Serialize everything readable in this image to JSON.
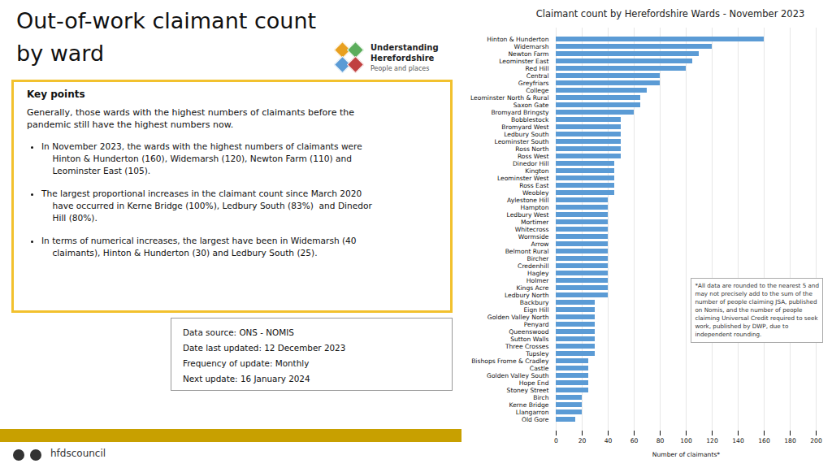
{
  "chart_data": {
    "type": "bar",
    "orientation": "horizontal",
    "title": "Claimant count by Herefordshire Wards - November 2023",
    "xlabel": "Number of claimants*",
    "categories": [
      "Hinton & Hunderton",
      "Widemarsh",
      "Newton Farm",
      "Leominster East",
      "Red Hill",
      "Central",
      "Greyfriars",
      "College",
      "Leominster North & Rural",
      "Saxon Gate",
      "Bromyard Bringsty",
      "Bobblestock",
      "Bromyard West",
      "Ledbury South",
      "Leominster South",
      "Ross North",
      "Ross West",
      "Dinedor Hill",
      "Kington",
      "Leominster West",
      "Ross East",
      "Weobley",
      "Aylestone Hill",
      "Hampton",
      "Ledbury West",
      "Mortimer",
      "Whitecross",
      "Wormside",
      "Arrow",
      "Belmont Rural",
      "Bircher",
      "Credenhill",
      "Hagley",
      "Holmer",
      "Kings Acre",
      "Ledbury North",
      "Backbury",
      "Eign Hill",
      "Golden Valley North",
      "Penyard",
      "Queenswood",
      "Sutton Walls",
      "Three Crosses",
      "Tupsley",
      "Bishops Frome & Cradley",
      "Castle",
      "Golden Valley South",
      "Hope End",
      "Stoney Street",
      "Birch",
      "Kerne Bridge",
      "Llangarron",
      "Old Gore"
    ],
    "values": [
      160,
      120,
      110,
      105,
      100,
      80,
      80,
      70,
      65,
      65,
      60,
      50,
      50,
      50,
      50,
      50,
      50,
      45,
      45,
      45,
      45,
      45,
      40,
      40,
      40,
      40,
      40,
      40,
      40,
      40,
      40,
      40,
      40,
      40,
      40,
      40,
      30,
      30,
      30,
      30,
      30,
      30,
      30,
      30,
      25,
      25,
      25,
      25,
      25,
      20,
      20,
      20,
      15
    ],
    "color": "#5B9BD5",
    "xlim": [
      0,
      200
    ],
    "xticks": [
      0,
      20,
      40,
      60,
      80,
      100,
      120,
      140,
      160,
      180,
      200
    ],
    "grid": true,
    "annotations": [
      "Out-of-work claimant count",
      "by ward",
      "Key points",
      "Generally, those wards with the highest numbers of claimants before the\npandemic still have the highest numbers now.",
      "In November 2023, the wards with the highest numbers of claimants were\n    Hinton & Hunderton (160), Widemarsh (120), Newton Farm (110) and\n    Leominster East (105).",
      "The largest proportional increases in the claimant count since March 2020\n    have occurred in Kerne Bridge (100%), Ledbury South (83%)  and Dinedor\n    Hill (80%).",
      "In terms of numerical increases, the largest have been in Widemarsh (40\n    claimants), Hinton & Hunderton (30) and Ledbury South (25).",
      "Data source: ONS - NOMIS",
      "Date last updated: 12 December 2023",
      "Frequency of update: Monthly",
      "Next update: 16 January 2024",
      "hfdscouncil",
      "Understanding",
      "Herefordshire",
      "People and places",
      "*All data are rounded to the nearest 5 and\nmay not precisely add to the sum of the\nnumber of people claiming JSA, published\non Nomis, and the number of people\nclaiming Universal Credit required to seek\nwork, published by DWP, due to\nindependent rounding."
    ]
  }
}
